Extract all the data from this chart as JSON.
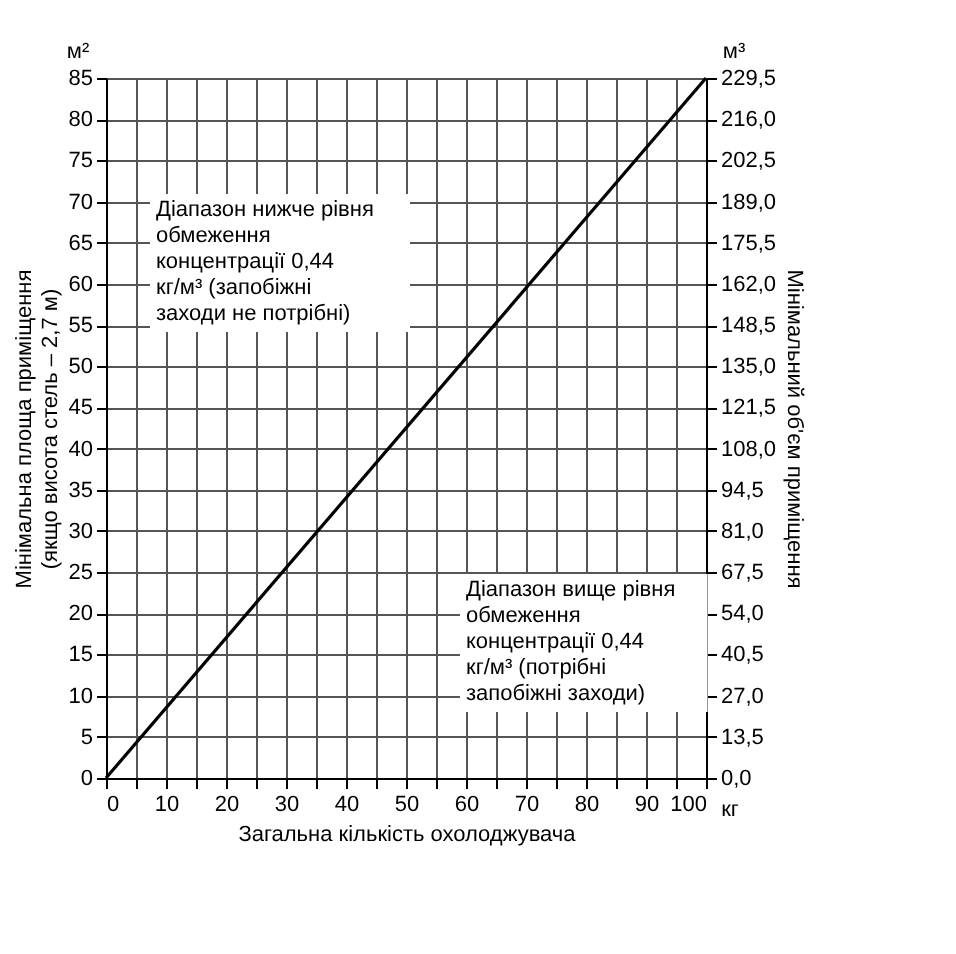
{
  "chart_data": {
    "type": "line",
    "xlabel": "Загальна кількість охолоджувача",
    "ylabel": "Мінімальна площа приміщення (якщо висота стель – 2,7 м)",
    "y2label": "Мінімальний об'єм приміщення",
    "x": [
      0,
      100
    ],
    "series": [
      {
        "color": "#000000",
        "values": [
          0,
          85
        ]
      }
    ],
    "xlim": [
      0,
      100
    ],
    "xticks": [
      0,
      {
        "value": 5,
        "label": null
      },
      10,
      {
        "value": 15,
        "label": null
      },
      20,
      {
        "value": 25,
        "label": null
      },
      30,
      {
        "value": 35,
        "label": null
      },
      40,
      {
        "value": 45,
        "label": null
      },
      50,
      {
        "value": 55,
        "label": null
      },
      60,
      {
        "value": 65,
        "label": null
      },
      70,
      {
        "value": 75,
        "label": null
      },
      80,
      {
        "value": 85,
        "label": null
      },
      90,
      {
        "value": 95,
        "label": null
      },
      100
    ],
    "ylim": [
      0,
      85
    ],
    "yticks": [
      0,
      5,
      10,
      15,
      20,
      25,
      30,
      35,
      40,
      45,
      50,
      55,
      60,
      65,
      70,
      75,
      80,
      85
    ],
    "y2lim": [
      0,
      229.5
    ],
    "y2ticks": [
      {
        "value": 0,
        "label": "0,0"
      },
      {
        "value": 13.5,
        "label": "13,5"
      },
      {
        "value": 27,
        "label": "27,0"
      },
      {
        "value": 40.5,
        "label": "40,5"
      },
      {
        "value": 54,
        "label": "54,0"
      },
      {
        "value": 67.5,
        "label": "67,5"
      },
      {
        "value": 81,
        "label": "81,0"
      },
      {
        "value": 94.5,
        "label": "94,5"
      },
      {
        "value": 108,
        "label": "108,0"
      },
      {
        "value": 121.5,
        "label": "121,5"
      },
      {
        "value": 135,
        "label": "135,0"
      },
      {
        "value": 148.5,
        "label": "148,5"
      },
      {
        "value": 162,
        "label": "162,0"
      },
      {
        "value": 175.5,
        "label": "175,5"
      },
      {
        "value": 189,
        "label": "189,0"
      },
      {
        "value": 202.5,
        "label": "202,5"
      },
      {
        "value": 216,
        "label": "216,0"
      },
      {
        "value": 229.5,
        "label": "229,5"
      }
    ],
    "grid": true,
    "annotations": [
      "Діапазон нижче рівня обмеження концентрації 0,44 кг/м³ (запобіжні заходи не потрібні)",
      "Діапазон вище рівня обмеження концентрації 0,44 кг/м³ (потрібні запобіжні заходи)",
      "м²",
      "м³",
      "кг"
    ]
  }
}
